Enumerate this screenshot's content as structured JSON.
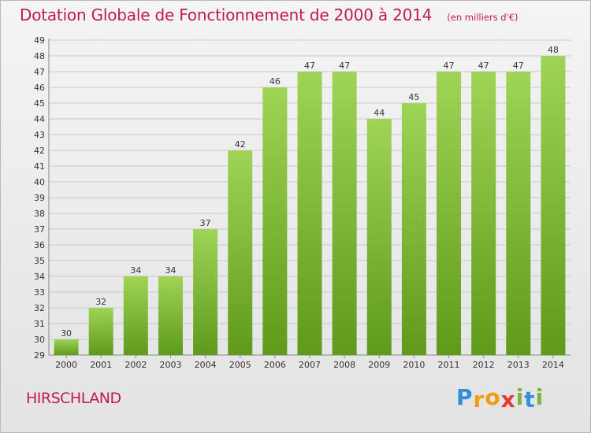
{
  "title": "Dotation Globale de Fonctionnement de 2000 à 2014",
  "subtitle": "(en milliers d'€)",
  "commune": "HIRSCHLAND",
  "brand": {
    "letters": [
      "P",
      "r",
      "o",
      "x",
      "i",
      "t",
      "i"
    ],
    "colors": [
      "#2f8fd8",
      "#f39c12",
      "#f39c12",
      "#e53935",
      "#7cb342",
      "#2f8fd8",
      "#7cb342"
    ]
  },
  "colors": {
    "title": "#c2185b",
    "bar_light": "#9fd457",
    "bar_dark": "#5f9a1a",
    "grid": "#c9c9c9",
    "axis_text": "#333333"
  },
  "chart_data": {
    "type": "bar",
    "categories": [
      "2000",
      "2001",
      "2002",
      "2003",
      "2004",
      "2005",
      "2006",
      "2007",
      "2008",
      "2009",
      "2010",
      "2011",
      "2012",
      "2013",
      "2014"
    ],
    "values": [
      30,
      32,
      34,
      34,
      37,
      42,
      46,
      47,
      47,
      44,
      45,
      47,
      47,
      47,
      48
    ],
    "ylim": [
      29,
      49
    ],
    "yticks": [
      29,
      30,
      31,
      32,
      33,
      34,
      35,
      36,
      37,
      38,
      39,
      40,
      41,
      42,
      43,
      44,
      45,
      46,
      47,
      48,
      49
    ],
    "grid": true,
    "xlabel": "",
    "ylabel": ""
  }
}
